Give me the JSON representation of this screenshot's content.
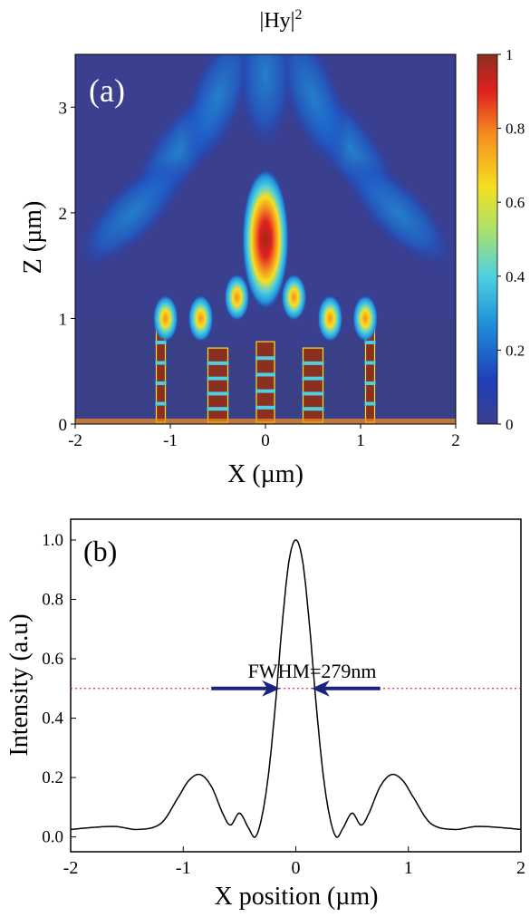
{
  "chart_data": [
    {
      "type": "heatmap",
      "panel_label": "(a)",
      "title": "|Hy|",
      "title_superscript": "2",
      "xlabel": "X (µm)",
      "ylabel": "Z (µm)",
      "xlim": [
        -2,
        2
      ],
      "ylim": [
        0,
        3.5
      ],
      "xticks": [
        -2,
        -1,
        0,
        1,
        2
      ],
      "yticks": [
        0,
        1,
        2,
        3
      ],
      "colorbar": {
        "min": 0,
        "max": 1,
        "ticks": [
          0,
          0.2,
          0.4,
          0.6,
          0.8,
          1
        ],
        "tick_labels": [
          "0",
          "0.2",
          "0.4",
          "0.6",
          "0.8",
          "1"
        ],
        "colors": [
          "#3b3f8f",
          "#1f3fb8",
          "#1f8fd8",
          "#4fd0e0",
          "#a8e070",
          "#f5e020",
          "#f59020",
          "#e02020",
          "#8b3020"
        ]
      },
      "structure": {
        "substrate_top_z": 1.0,
        "lens_bottom_z": 0.7,
        "pillar_x": [
          -1.1,
          -0.5,
          0,
          0.5,
          1.1
        ]
      },
      "focal_spot": {
        "x": 0,
        "z": 1.75,
        "peak": 1.0
      }
    },
    {
      "type": "line",
      "panel_label": "(b)",
      "xlabel": "X position (µm)",
      "ylabel": "Intensity (a.u)",
      "xlim": [
        -2,
        2
      ],
      "ylim": [
        -0.05,
        1.07
      ],
      "xticks": [
        -2,
        -1,
        0,
        1,
        2
      ],
      "yticks": [
        0.0,
        0.2,
        0.4,
        0.6,
        0.8,
        1.0
      ],
      "ytick_labels": [
        "0.0",
        "0.2",
        "0.4",
        "0.6",
        "0.8",
        "1.0"
      ],
      "series": [
        {
          "x": [
            -2.0,
            -1.8,
            -1.6,
            -1.4,
            -1.2,
            -1.05,
            -0.95,
            -0.85,
            -0.75,
            -0.65,
            -0.58,
            -0.5,
            -0.42,
            -0.36,
            -0.3,
            -0.24,
            -0.18,
            -0.12,
            -0.06,
            0.0,
            0.06,
            0.12,
            0.18,
            0.24,
            0.3,
            0.36,
            0.42,
            0.5,
            0.58,
            0.65,
            0.75,
            0.85,
            0.95,
            1.05,
            1.2,
            1.4,
            1.6,
            1.8,
            2.0
          ],
          "y": [
            0.025,
            0.032,
            0.035,
            0.025,
            0.045,
            0.13,
            0.19,
            0.21,
            0.17,
            0.08,
            0.04,
            0.08,
            0.03,
            0.0,
            0.07,
            0.22,
            0.45,
            0.72,
            0.93,
            1.0,
            0.93,
            0.72,
            0.45,
            0.22,
            0.07,
            0.0,
            0.03,
            0.08,
            0.04,
            0.08,
            0.17,
            0.21,
            0.19,
            0.13,
            0.045,
            0.025,
            0.035,
            0.032,
            0.025
          ]
        }
      ],
      "reference_line": {
        "y": 0.5,
        "style": "dotted",
        "color": "#e03030"
      },
      "annotation": {
        "text": "FWHM=279nm",
        "x": 0.58,
        "y": 0.56
      },
      "arrows": [
        {
          "from_x": -0.75,
          "to_x": -0.14,
          "y": 0.5
        },
        {
          "from_x": 0.75,
          "to_x": 0.14,
          "y": 0.5
        }
      ],
      "arrow_color": "#1a237e"
    }
  ]
}
